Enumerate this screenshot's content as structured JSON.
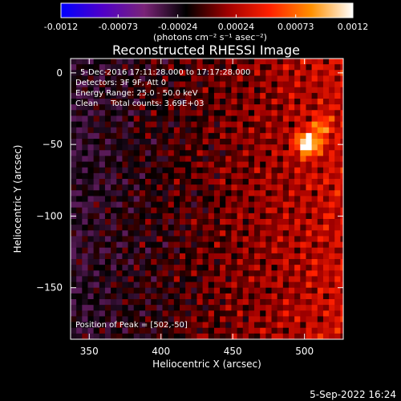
{
  "chart_data": {
    "type": "heatmap",
    "title": "Reconstructed RHESSI Image",
    "xlabel": "Heliocentric X (arcsec)",
    "ylabel": "Heliocentric Y (arcsec)",
    "xlim": [
      337,
      527
    ],
    "ylim": [
      -186,
      10
    ],
    "x_ticks": [
      350,
      400,
      450,
      500
    ],
    "y_ticks": [
      0,
      -50,
      -100,
      -150
    ],
    "info_lines": [
      "5-Dec-2016 17:11:28.000 to 17:17:28.000",
      "Detectors: 3F 9F, Att 0",
      "Energy Range: 25.0 - 50.0 keV",
      "Clean     Total counts: 3.69E+03"
    ],
    "peak_label": "Position of Peak = [502,-50]",
    "peak": {
      "x": 502,
      "y": -50
    },
    "colorbar": {
      "min": -0.0012,
      "max": 0.0012,
      "tick_labels": [
        "-0.0012",
        "-0.00073",
        "-0.00024",
        "0.00024",
        "0.00073",
        "0.0012"
      ],
      "unit_label": "(photons cm⁻² s⁻¹ asec⁻²)",
      "colors": [
        "#0000ff",
        "#5000c8",
        "#7a2478",
        "#000000",
        "#a00000",
        "#ff2000",
        "#ff9000",
        "#ffffff"
      ]
    },
    "pixel_size_arcsec": 4
  },
  "footer": {
    "date": "5-Sep-2022 16:24"
  }
}
